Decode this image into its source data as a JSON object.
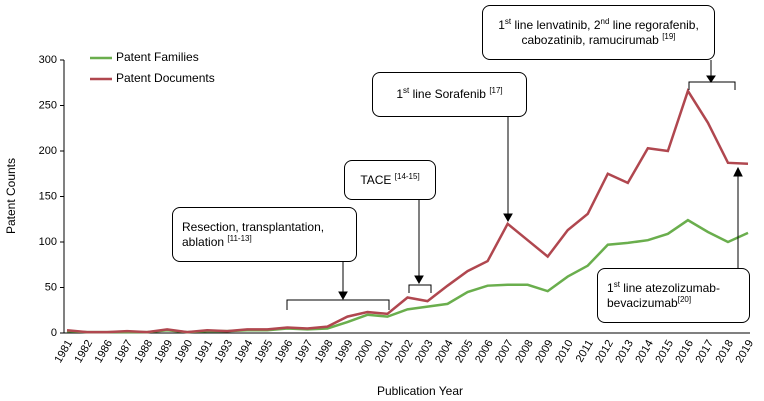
{
  "chart_data": {
    "type": "line",
    "x_label": "Publication Year",
    "y_label": "Patent Counts",
    "categories": [
      "1981",
      "1982",
      "1986",
      "1987",
      "1988",
      "1989",
      "1990",
      "1991",
      "1993",
      "1994",
      "1995",
      "1996",
      "1997",
      "1998",
      "1999",
      "2000",
      "2001",
      "2002",
      "2003",
      "2004",
      "2005",
      "2006",
      "2007",
      "2008",
      "2009",
      "2010",
      "2011",
      "2012",
      "2013",
      "2014",
      "2015",
      "2016",
      "2017",
      "2018",
      "2019"
    ],
    "series": [
      {
        "name": "Patent Families",
        "color": "#6aae4d",
        "values": [
          2,
          1,
          1,
          1,
          1,
          3,
          1,
          2,
          2,
          3,
          3,
          5,
          4,
          5,
          12,
          20,
          18,
          26,
          29,
          32,
          45,
          52,
          53,
          53,
          46,
          62,
          74,
          97,
          99,
          102,
          109,
          124,
          111,
          100,
          110
        ]
      },
      {
        "name": "Patent Documents",
        "color": "#b0474f",
        "values": [
          3,
          1,
          1,
          2,
          1,
          4,
          1,
          3,
          2,
          4,
          4,
          6,
          5,
          7,
          18,
          23,
          21,
          39,
          35,
          52,
          68,
          79,
          120,
          102,
          84,
          113,
          131,
          175,
          165,
          203,
          200,
          266,
          231,
          187,
          186
        ]
      }
    ],
    "ylim": [
      0,
      300
    ],
    "yticks": [
      0,
      50,
      100,
      150,
      200,
      250,
      300
    ],
    "grid": false,
    "legend": "top-left",
    "annotations": [
      {
        "parts": [
          "1",
          "st",
          " line lenvatinib, 2",
          "nd",
          " line regorafenib,",
          "cabozatinib, ramucirumab ",
          "[19]"
        ]
      },
      {
        "parts": [
          "1",
          "st",
          " line Sorafenib ",
          "[17]"
        ]
      },
      {
        "parts": [
          "TACE ",
          "[14-15]"
        ]
      },
      {
        "parts": [
          "Resection, transplantation,",
          "ablation ",
          "[11-13]"
        ]
      },
      {
        "parts": [
          "1",
          "st",
          " line atezolizumab-",
          "bevacizumab",
          "[20]"
        ]
      }
    ]
  }
}
